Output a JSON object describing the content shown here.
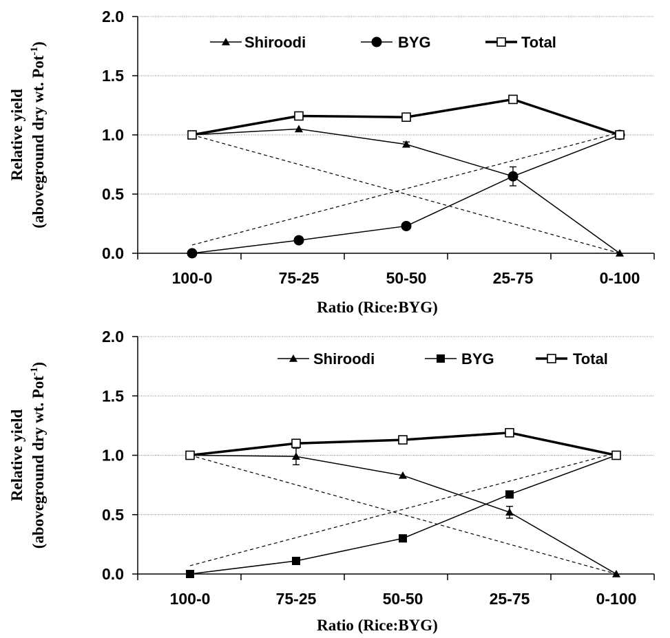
{
  "chart_data": [
    {
      "type": "line",
      "categories": [
        "100-0",
        "75-25",
        "50-50",
        "25-75",
        "0-100"
      ],
      "xlabel": "Ratio (Rice:BYG)",
      "ylabel_line1": "Relative yield",
      "ylabel_line2": "(aboveground dry wt. Pot",
      "ylabel_sup": "-1",
      "ylabel_close": ")",
      "ylim": [
        0,
        2.0
      ],
      "yticks": [
        "0.0",
        "0.5",
        "1.0",
        "1.5",
        "2.0"
      ],
      "grid": "horizontal dotted",
      "legend_position": "top",
      "series": [
        {
          "name": "Shiroodi",
          "marker": "triangle",
          "values": [
            1.0,
            1.05,
            0.92,
            0.65,
            0.0
          ],
          "errors": [
            0,
            0,
            0.02,
            0.03,
            0
          ]
        },
        {
          "name": "BYG",
          "marker": "circle",
          "values": [
            0.0,
            0.11,
            0.23,
            0.65,
            1.0
          ],
          "errors": [
            0,
            0,
            0,
            0.08,
            0
          ]
        },
        {
          "name": "Total",
          "marker": "open-square",
          "values": [
            1.0,
            1.16,
            1.15,
            1.3,
            1.0
          ],
          "errors": [
            0,
            0,
            0,
            0,
            0
          ]
        }
      ],
      "expected_lines": [
        [
          1.0,
          0.0
        ],
        [
          0.07,
          1.02
        ]
      ]
    },
    {
      "type": "line",
      "categories": [
        "100-0",
        "75-25",
        "50-50",
        "25-75",
        "0-100"
      ],
      "xlabel": "Ratio (Rice:BYG)",
      "ylabel_line1": "Relative yield",
      "ylabel_line2": "(aboveground dry wt. Pot",
      "ylabel_sup": "-1",
      "ylabel_close": ")",
      "ylim": [
        0,
        2.0
      ],
      "yticks": [
        "0.0",
        "0.5",
        "1.0",
        "1.5",
        "2.0"
      ],
      "grid": "horizontal dotted",
      "legend_position": "top",
      "series": [
        {
          "name": "Shiroodi",
          "marker": "triangle",
          "values": [
            1.0,
            0.99,
            0.83,
            0.52,
            0.0
          ],
          "errors": [
            0,
            0.07,
            0,
            0.05,
            0
          ]
        },
        {
          "name": "BYG",
          "marker": "square",
          "values": [
            0.0,
            0.11,
            0.3,
            0.67,
            1.0
          ],
          "errors": [
            0,
            0,
            0,
            0,
            0
          ]
        },
        {
          "name": "Total",
          "marker": "open-square",
          "values": [
            1.0,
            1.1,
            1.13,
            1.19,
            1.0
          ],
          "errors": [
            0,
            0,
            0,
            0,
            0
          ]
        }
      ],
      "expected_lines": [
        [
          1.0,
          0.0
        ],
        [
          0.07,
          1.02
        ]
      ]
    }
  ]
}
